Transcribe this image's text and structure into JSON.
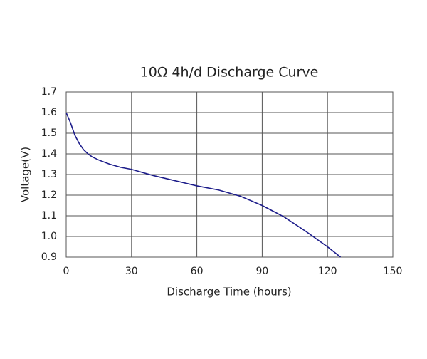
{
  "chart_data": {
    "type": "line",
    "title": "10Ω 4h/d Discharge Curve",
    "x_label": "Discharge Time (hours)",
    "y_label": "Voltage(V)",
    "x": [
      0,
      2,
      4,
      6,
      8,
      10,
      12,
      15,
      20,
      25,
      30,
      40,
      50,
      60,
      70,
      80,
      90,
      100,
      110,
      120,
      126
    ],
    "series": [
      {
        "name": "Voltage",
        "color": "#1c1c8a",
        "values": [
          1.6,
          1.55,
          1.49,
          1.45,
          1.42,
          1.4,
          1.385,
          1.37,
          1.35,
          1.335,
          1.325,
          1.295,
          1.27,
          1.245,
          1.225,
          1.195,
          1.15,
          1.095,
          1.025,
          0.95,
          0.9
        ]
      }
    ],
    "xlim": [
      0,
      150
    ],
    "xticks": [
      0,
      30,
      60,
      90,
      120,
      150
    ],
    "ylim": [
      0.9,
      1.7
    ],
    "yticks": [
      0.9,
      {
        "value": 1,
        "label": "1.0"
      },
      1.1,
      1.2,
      1.3,
      1.4,
      1.5,
      1.6,
      1.7
    ],
    "grid": true
  }
}
